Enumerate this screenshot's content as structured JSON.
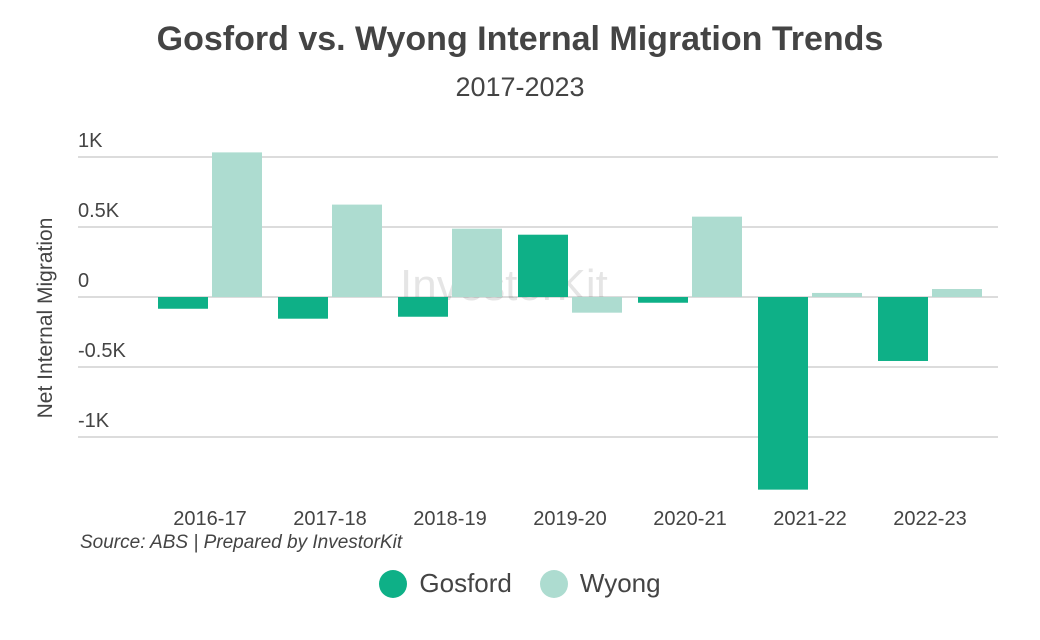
{
  "chart_data": {
    "type": "bar",
    "title": "Gosford vs. Wyong Internal Migration Trends",
    "subtitle": "2017-2023",
    "ylabel": "Net Internal Migration",
    "xlabel": "",
    "categories": [
      "2016-17",
      "2017-18",
      "2018-19",
      "2019-20",
      "2020-21",
      "2021-22",
      "2022-23"
    ],
    "series": [
      {
        "name": "Gosford",
        "color": "#0eb087",
        "values": [
          -84,
          -155,
          -141,
          445,
          -41,
          -1376,
          -457
        ]
      },
      {
        "name": "Wyong",
        "color": "#addcd0",
        "values": [
          1033,
          660,
          488,
          -112,
          574,
          29,
          57
        ]
      }
    ],
    "ylim": [
      -1400,
      1050
    ],
    "yticks": [
      {
        "value": 1000,
        "label": "1K"
      },
      {
        "value": 500,
        "label": "0.5K"
      },
      {
        "value": 0,
        "label": "0"
      },
      {
        "value": -500,
        "label": "-0.5K"
      },
      {
        "value": -1000,
        "label": "-1K"
      }
    ],
    "grid": true,
    "legend_position": "bottom",
    "source": "Source: ABS | Prepared by InvestorKit",
    "watermark": "InvestorKit"
  }
}
